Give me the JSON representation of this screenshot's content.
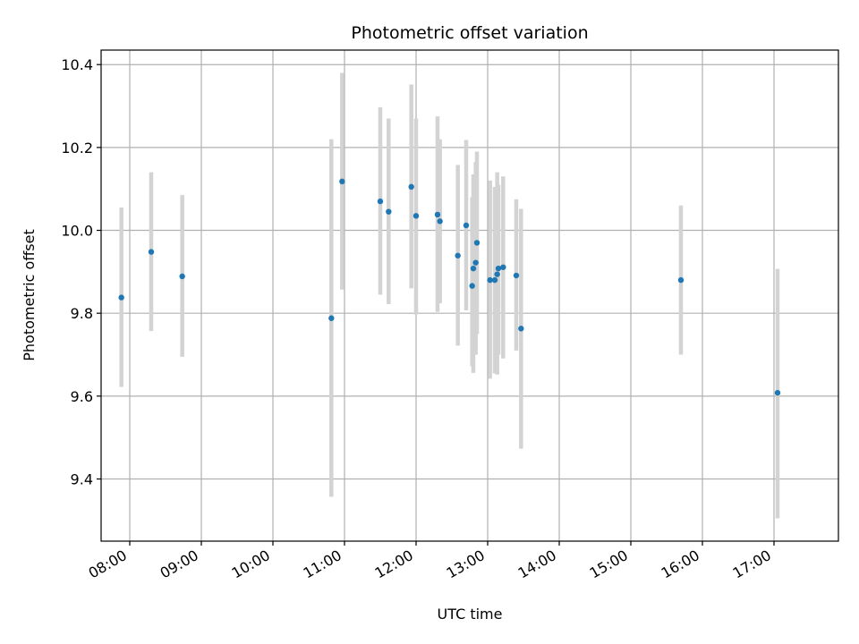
{
  "chart_data": {
    "type": "scatter",
    "title": "Photometric offset variation",
    "xlabel": "UTC time",
    "ylabel": "Photometric offset",
    "grid": true,
    "x_unit": "UTC time (HH:MM)",
    "xlim": [
      "07:36",
      "17:54"
    ],
    "ylim": [
      9.25,
      10.435
    ],
    "x_ticks": [
      "08:00",
      "09:00",
      "10:00",
      "11:00",
      "12:00",
      "13:00",
      "14:00",
      "15:00",
      "16:00",
      "17:00"
    ],
    "y_ticks": [
      "9.4",
      "9.6",
      "9.8",
      "10.0",
      "10.2",
      "10.4"
    ],
    "colors": {
      "point": "#1f77b4",
      "errorbar": "#d3d3d3",
      "grid": "#b0b0b0"
    },
    "points": [
      {
        "x": "07:53",
        "y": 9.838,
        "low": 9.622,
        "high": 10.055
      },
      {
        "x": "08:18",
        "y": 9.948,
        "low": 9.757,
        "high": 10.14
      },
      {
        "x": "08:44",
        "y": 9.889,
        "low": 9.695,
        "high": 10.085
      },
      {
        "x": "10:49",
        "y": 9.788,
        "low": 9.357,
        "high": 10.22
      },
      {
        "x": "10:58",
        "y": 10.118,
        "low": 9.857,
        "high": 10.38
      },
      {
        "x": "11:30",
        "y": 10.07,
        "low": 9.845,
        "high": 10.297
      },
      {
        "x": "11:37",
        "y": 10.045,
        "low": 9.822,
        "high": 10.27
      },
      {
        "x": "11:56",
        "y": 10.105,
        "low": 9.86,
        "high": 10.352
      },
      {
        "x": "12:00",
        "y": 10.035,
        "low": 9.797,
        "high": 10.27
      },
      {
        "x": "12:18",
        "y": 10.038,
        "low": 9.803,
        "high": 10.275
      },
      {
        "x": "12:20",
        "y": 10.022,
        "low": 9.824,
        "high": 10.22
      },
      {
        "x": "12:35",
        "y": 9.939,
        "low": 9.722,
        "high": 10.158
      },
      {
        "x": "12:42",
        "y": 10.012,
        "low": 9.807,
        "high": 10.218
      },
      {
        "x": "12:47",
        "y": 9.866,
        "low": 9.672,
        "high": 10.08
      },
      {
        "x": "12:48",
        "y": 9.908,
        "low": 9.656,
        "high": 10.135
      },
      {
        "x": "12:50",
        "y": 9.922,
        "low": 9.7,
        "high": 10.165
      },
      {
        "x": "12:51",
        "y": 9.97,
        "low": 9.75,
        "high": 10.19
      },
      {
        "x": "13:02",
        "y": 9.88,
        "low": 9.642,
        "high": 10.12
      },
      {
        "x": "13:06",
        "y": 9.88,
        "low": 9.655,
        "high": 10.105
      },
      {
        "x": "13:08",
        "y": 9.894,
        "low": 9.652,
        "high": 10.14
      },
      {
        "x": "13:09",
        "y": 9.908,
        "low": 9.7,
        "high": 10.11
      },
      {
        "x": "13:13",
        "y": 9.911,
        "low": 9.691,
        "high": 10.13
      },
      {
        "x": "13:24",
        "y": 9.891,
        "low": 9.71,
        "high": 10.075
      },
      {
        "x": "13:28",
        "y": 9.763,
        "low": 9.473,
        "high": 10.052
      },
      {
        "x": "15:42",
        "y": 9.88,
        "low": 9.7,
        "high": 10.06
      },
      {
        "x": "17:03",
        "y": 9.608,
        "low": 9.305,
        "high": 9.907
      }
    ]
  }
}
